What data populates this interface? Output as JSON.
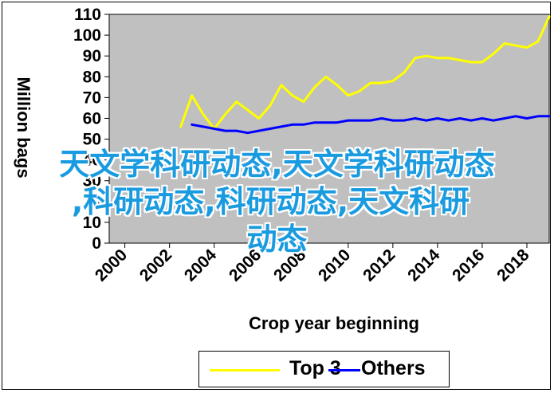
{
  "chart_data": {
    "type": "line",
    "title": "",
    "xlabel": "Crop year beginning",
    "ylabel": "Million bags",
    "ylim": [
      0,
      110
    ],
    "yticks": [
      0,
      10,
      20,
      30,
      40,
      50,
      60,
      70,
      80,
      90,
      100,
      110
    ],
    "xticks": [
      "2000",
      "2002",
      "2004",
      "2006",
      "2008",
      "2010",
      "2012",
      "2014",
      "2016",
      "2018"
    ],
    "x": [
      2000,
      2000.5,
      2001,
      2001.5,
      2002,
      2002.5,
      2003,
      2003.5,
      2004,
      2004.5,
      2005,
      2005.5,
      2006,
      2006.5,
      2007,
      2007.5,
      2008,
      2008.5,
      2009,
      2009.5,
      2010,
      2010.5,
      2011,
      2011.5,
      2012,
      2012.5,
      2013,
      2013.5,
      2014,
      2014.5,
      2015,
      2015.5,
      2016,
      2016.5,
      2017,
      2017.5,
      2018,
      2018.5,
      2019
    ],
    "series": [
      {
        "name": "Top 3",
        "color": "#ffff00",
        "values": [
          null,
          null,
          null,
          null,
          null,
          56,
          71,
          62,
          55,
          62,
          68,
          64,
          60,
          66,
          76,
          71,
          68,
          75,
          80,
          76,
          71,
          73,
          77,
          77,
          78,
          82,
          89,
          90,
          89,
          89,
          88,
          87,
          87,
          91,
          96,
          95,
          94,
          97,
          109
        ]
      },
      {
        "name": "Others",
        "color": "#0000ff",
        "values": [
          null,
          null,
          null,
          null,
          null,
          null,
          57,
          56,
          55,
          54,
          54,
          53,
          54,
          55,
          56,
          57,
          57,
          58,
          58,
          58,
          59,
          59,
          59,
          60,
          59,
          59,
          60,
          59,
          60,
          59,
          60,
          59,
          60,
          59,
          60,
          61,
          60,
          61,
          61
        ]
      }
    ],
    "grid": false,
    "legend_position": "bottom"
  },
  "overlay": {
    "line1": "天文学科研动态,天文学科研动态",
    "line2": ",科研动态,科研动态,天文科研",
    "line3": "动态"
  }
}
